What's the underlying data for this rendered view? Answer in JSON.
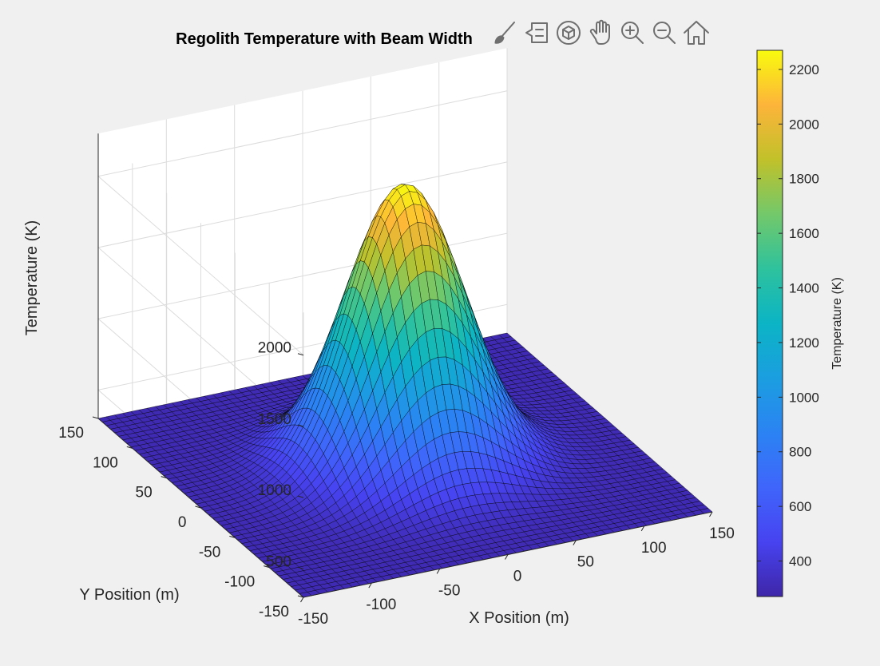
{
  "chart_data": {
    "type": "surface",
    "title": "Regolith Temperature with Beam Width",
    "xlabel": "X Position (m)",
    "ylabel": "Y Position (m)",
    "zlabel": "Temperature (K)",
    "xlim": [
      -150,
      150
    ],
    "ylim": [
      -150,
      150
    ],
    "zlim": [
      300,
      2300
    ],
    "x_ticks": [
      "-150",
      "-100",
      "-50",
      "0",
      "50",
      "100",
      "150"
    ],
    "y_ticks": [
      "-150",
      "-100",
      "-50",
      "0",
      "50",
      "100",
      "150"
    ],
    "z_ticks": [
      "500",
      "1000",
      "1500",
      "2000"
    ],
    "function": "gaussian",
    "grid_points_per_axis": 51,
    "base_temperature": 300,
    "peak_temperature": 2270,
    "center": [
      0,
      0
    ],
    "gaussian_sigma": 40,
    "colormap": "parula",
    "edge_color": "#000000",
    "grid": true,
    "colorbar": {
      "label": "Temperature (K)",
      "range": [
        270,
        2270
      ],
      "ticks": [
        "400",
        "600",
        "800",
        "1000",
        "1200",
        "1400",
        "1600",
        "1800",
        "2000",
        "2200"
      ],
      "location": "right"
    }
  },
  "toolbar": {
    "items": [
      {
        "name": "brush-icon"
      },
      {
        "name": "datatip-icon"
      },
      {
        "name": "rotate-3d-icon"
      },
      {
        "name": "pan-hand-icon"
      },
      {
        "name": "zoom-in-icon"
      },
      {
        "name": "zoom-out-icon"
      },
      {
        "name": "home-icon"
      }
    ]
  }
}
